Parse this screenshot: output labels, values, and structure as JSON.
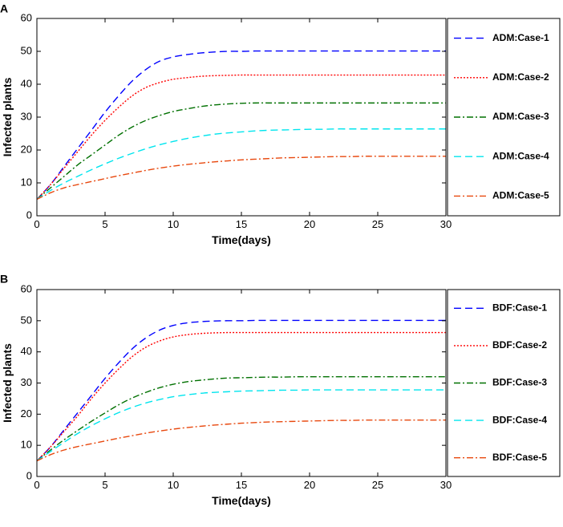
{
  "chart_data": [
    {
      "type": "line",
      "panel": "A",
      "title": "",
      "xlabel": "Time(days)",
      "ylabel": "Infected plants",
      "xlim": [
        0,
        30
      ],
      "ylim": [
        0,
        60
      ],
      "xticks": [
        0,
        5,
        10,
        15,
        20,
        25,
        30
      ],
      "yticks": [
        0,
        10,
        20,
        30,
        40,
        50,
        60
      ],
      "grid": false,
      "legend_position": "right",
      "x": [
        0,
        1,
        2,
        3,
        4,
        5,
        6,
        7,
        8,
        9,
        10,
        11,
        12,
        13,
        14,
        15,
        16,
        17,
        18,
        19,
        20,
        21,
        22,
        23,
        24,
        25,
        26,
        27,
        28,
        29,
        30
      ],
      "series": [
        {
          "name": "ADM:Case-1",
          "color": "#0000ff",
          "dash": "dashed",
          "values": [
            5,
            9.5,
            15,
            20.5,
            26,
            31.5,
            36.5,
            41,
            44.5,
            47,
            48.3,
            49,
            49.5,
            49.8,
            50,
            50,
            50.1,
            50.1,
            50.1,
            50.1,
            50.1,
            50.1,
            50.1,
            50.1,
            50.1,
            50.1,
            50.1,
            50.1,
            50.1,
            50.1,
            50.1
          ]
        },
        {
          "name": "ADM:Case-2",
          "color": "#ff0000",
          "dash": "dotted",
          "values": [
            5,
            9.5,
            14.5,
            19.5,
            24.5,
            29,
            33,
            36.5,
            39,
            40.5,
            41.5,
            42,
            42.4,
            42.6,
            42.7,
            42.8,
            42.8,
            42.8,
            42.8,
            42.8,
            42.8,
            42.8,
            42.8,
            42.8,
            42.8,
            42.8,
            42.8,
            42.8,
            42.8,
            42.8,
            42.8
          ]
        },
        {
          "name": "ADM:Case-3",
          "color": "#007000",
          "dash": "dashdot",
          "values": [
            5,
            8.5,
            12,
            15.5,
            18.5,
            21.5,
            24.5,
            27,
            29,
            30.5,
            31.7,
            32.5,
            33.2,
            33.7,
            34,
            34.2,
            34.3,
            34.3,
            34.3,
            34.3,
            34.3,
            34.3,
            34.3,
            34.3,
            34.3,
            34.3,
            34.3,
            34.3,
            34.3,
            34.3,
            34.3
          ]
        },
        {
          "name": "ADM:Case-4",
          "color": "#00e5ee",
          "dash": "dashed",
          "values": [
            5,
            7.7,
            10,
            12,
            14,
            15.8,
            17.5,
            19,
            20.4,
            21.6,
            22.6,
            23.5,
            24.2,
            24.8,
            25.2,
            25.5,
            25.8,
            26,
            26.1,
            26.2,
            26.3,
            26.3,
            26.4,
            26.4,
            26.4,
            26.4,
            26.4,
            26.4,
            26.4,
            26.4,
            26.4
          ]
        },
        {
          "name": "ADM:Case-5",
          "color": "#e8480e",
          "dash": "dashdot",
          "values": [
            5,
            7,
            8.5,
            9.5,
            10.4,
            11.3,
            12.2,
            13,
            13.8,
            14.5,
            15.1,
            15.6,
            16,
            16.4,
            16.7,
            17,
            17.2,
            17.4,
            17.6,
            17.7,
            17.8,
            17.9,
            18,
            18,
            18.1,
            18.1,
            18.1,
            18.1,
            18.1,
            18.1,
            18.1
          ]
        }
      ]
    },
    {
      "type": "line",
      "panel": "B",
      "title": "",
      "xlabel": "Time(days)",
      "ylabel": "Infected plants",
      "xlim": [
        0,
        30
      ],
      "ylim": [
        0,
        60
      ],
      "xticks": [
        0,
        5,
        10,
        15,
        20,
        25,
        30
      ],
      "yticks": [
        0,
        10,
        20,
        30,
        40,
        50,
        60
      ],
      "grid": false,
      "legend_position": "right",
      "x": [
        0,
        1,
        2,
        3,
        4,
        5,
        6,
        7,
        8,
        9,
        10,
        11,
        12,
        13,
        14,
        15,
        16,
        17,
        18,
        19,
        20,
        21,
        22,
        23,
        24,
        25,
        26,
        27,
        28,
        29,
        30
      ],
      "series": [
        {
          "name": "BDF:Case-1",
          "color": "#0000ff",
          "dash": "dashed",
          "values": [
            5,
            9.5,
            15,
            20.5,
            26,
            31.5,
            36.5,
            41,
            44.5,
            47,
            48.5,
            49.3,
            49.7,
            49.9,
            50,
            50,
            50.1,
            50.1,
            50.1,
            50.1,
            50.1,
            50.1,
            50.1,
            50.1,
            50.1,
            50.1,
            50.1,
            50.1,
            50.1,
            50.1,
            50.1
          ]
        },
        {
          "name": "BDF:Case-2",
          "color": "#ff0000",
          "dash": "dotted",
          "values": [
            5,
            9.5,
            14.5,
            19.5,
            25,
            30,
            34.5,
            38.5,
            41.5,
            43.5,
            44.8,
            45.5,
            45.9,
            46.1,
            46.2,
            46.2,
            46.2,
            46.2,
            46.2,
            46.2,
            46.2,
            46.2,
            46.2,
            46.2,
            46.2,
            46.2,
            46.2,
            46.2,
            46.2,
            46.2,
            46.2
          ]
        },
        {
          "name": "BDF:Case-3",
          "color": "#007000",
          "dash": "dashdot",
          "values": [
            5,
            8.5,
            11.8,
            14.8,
            17.7,
            20.4,
            23,
            25.2,
            27,
            28.5,
            29.6,
            30.4,
            30.9,
            31.3,
            31.6,
            31.7,
            31.8,
            31.9,
            31.9,
            32,
            32,
            32,
            32,
            32,
            32,
            32,
            32,
            32,
            32,
            32,
            32
          ]
        },
        {
          "name": "BDF:Case-4",
          "color": "#00e5ee",
          "dash": "dashed",
          "values": [
            5,
            8,
            11,
            13.8,
            16.3,
            18.5,
            20.5,
            22.2,
            23.6,
            24.7,
            25.6,
            26.2,
            26.7,
            27,
            27.2,
            27.4,
            27.5,
            27.6,
            27.7,
            27.7,
            27.8,
            27.8,
            27.8,
            27.8,
            27.8,
            27.8,
            27.8,
            27.8,
            27.8,
            27.8,
            27.8
          ]
        },
        {
          "name": "BDF:Case-5",
          "color": "#e8480e",
          "dash": "dashdot",
          "values": [
            5,
            7,
            8.5,
            9.6,
            10.5,
            11.4,
            12.3,
            13.1,
            13.9,
            14.6,
            15.2,
            15.7,
            16.1,
            16.5,
            16.8,
            17.1,
            17.3,
            17.5,
            17.6,
            17.7,
            17.8,
            17.9,
            18,
            18,
            18.1,
            18.1,
            18.1,
            18.1,
            18.1,
            18.1,
            18.1
          ]
        }
      ]
    }
  ]
}
